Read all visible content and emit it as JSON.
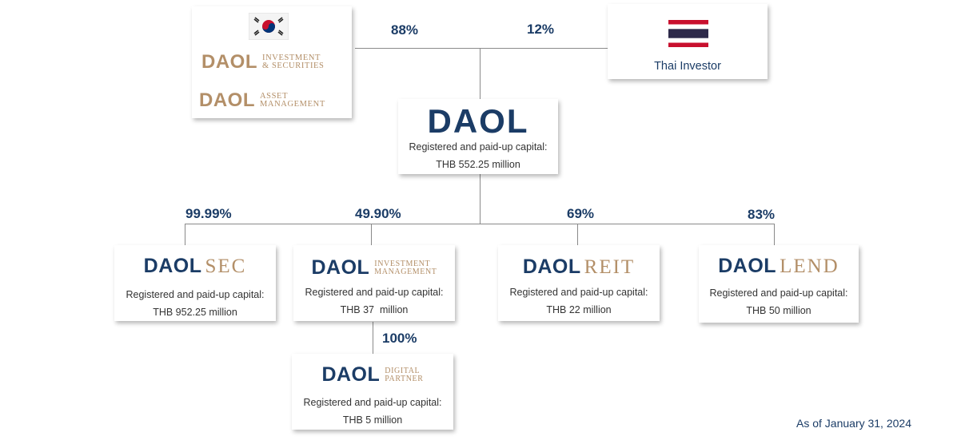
{
  "shareholders": {
    "korea": {
      "logo1": {
        "main": "DAOL",
        "sub_line1": "Investment",
        "sub_line2": "& Securities"
      },
      "logo2": {
        "main": "DAOL",
        "sub_line1": "Asset",
        "sub_line2": "Management"
      },
      "stake": "88%"
    },
    "thai": {
      "label": "Thai Investor",
      "stake": "12%"
    }
  },
  "parent": {
    "logo": "DAOL",
    "capital_label": "Registered and paid-up capital:",
    "capital_value": "THB 552.25 million"
  },
  "subsidiaries": [
    {
      "stake": "99.99%",
      "logo_main": "DAOL",
      "logo_suffix": "SEC",
      "capital_label": "Registered and paid-up capital:",
      "capital_value": "THB 952.25 million"
    },
    {
      "stake": "49.90%",
      "logo_main": "DAOL",
      "logo_sub_line1": "Investment",
      "logo_sub_line2": "Management",
      "capital_label": "Registered and paid-up capital:",
      "capital_value": "THB 37  million"
    },
    {
      "stake": "69%",
      "logo_main": "DAOL",
      "logo_suffix": "REIT",
      "capital_label": "Registered and paid-up capital:",
      "capital_value": "THB 22 million"
    },
    {
      "stake": "83%",
      "logo_main": "DAOL",
      "logo_suffix": "LEND",
      "capital_label": "Registered and paid-up capital:",
      "capital_value": "THB 50 million"
    }
  ],
  "sub_subsidiary": {
    "stake": "100%",
    "logo_main": "DAOL",
    "logo_sub_line1": "Digital",
    "logo_sub_line2": "Partner",
    "capital_label": "Registered and paid-up capital:",
    "capital_value": "THB 5 million"
  },
  "colors": {
    "navy": "#1b3c66",
    "gold": "#b38f68",
    "line": "#8a8a8a"
  },
  "icons": {
    "korea_flag": "south-korea-flag-icon",
    "thai_flag": "thailand-flag-icon"
  },
  "footnote": "As of January 31, 2024"
}
